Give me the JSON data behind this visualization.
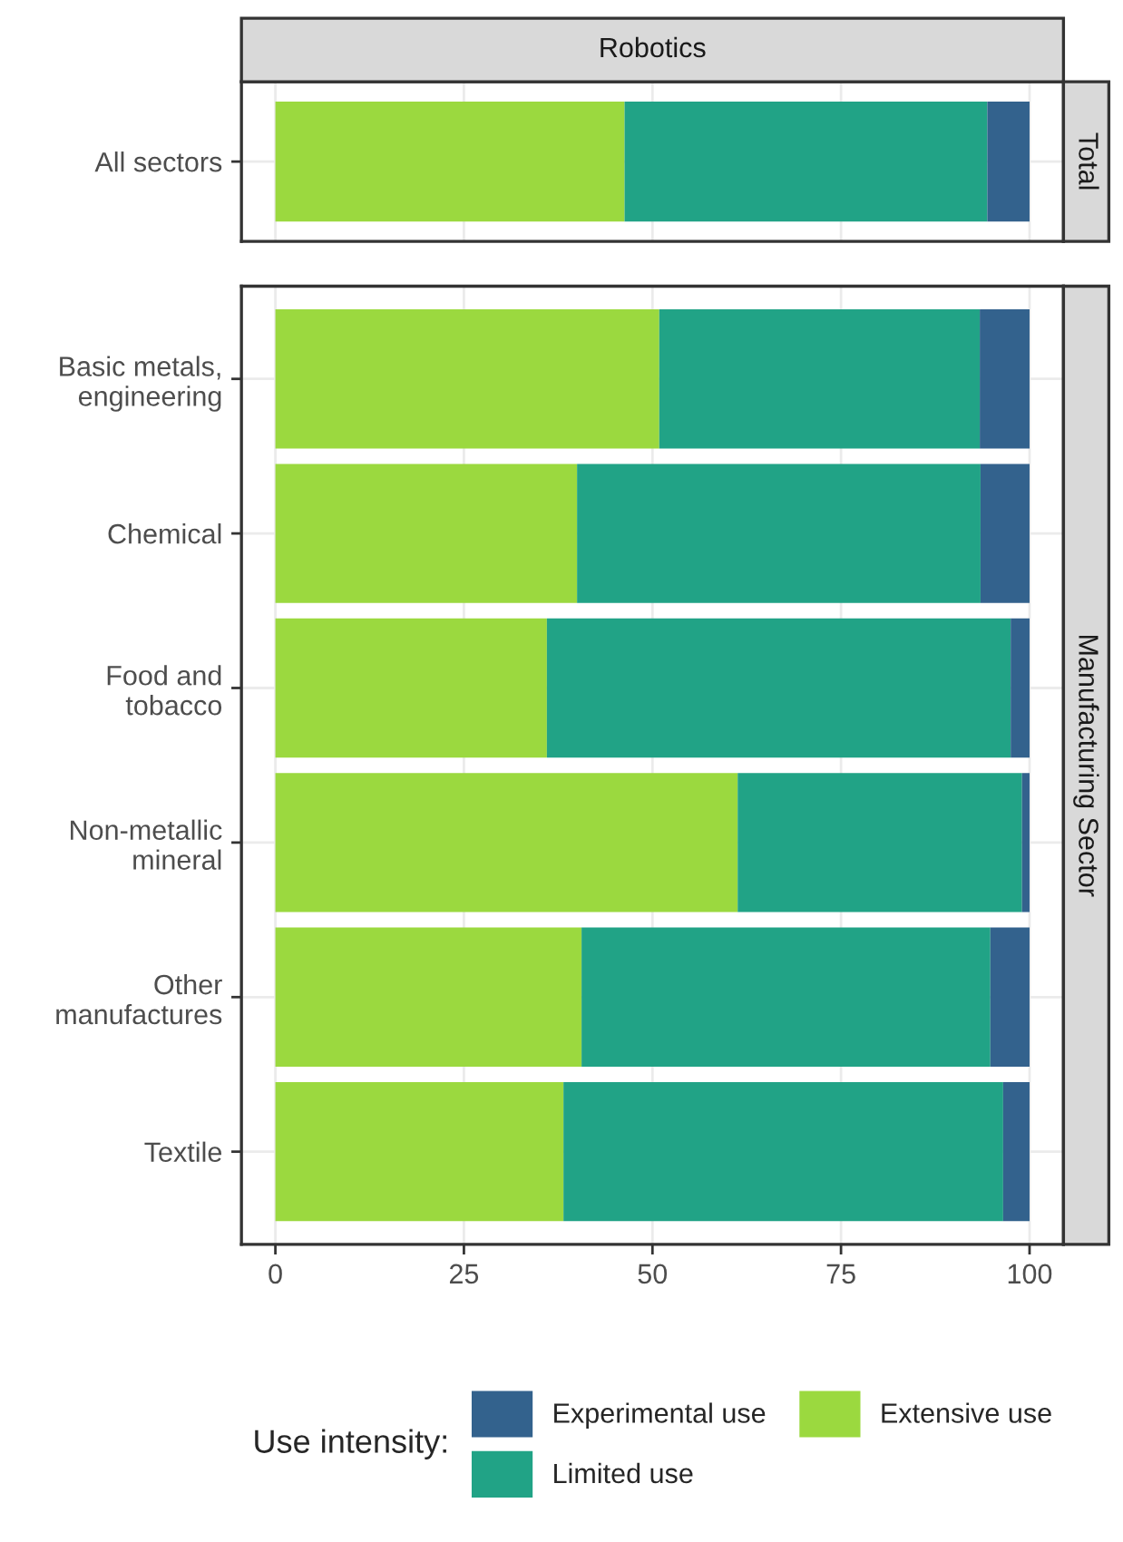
{
  "chart_data": [
    {
      "type": "bar",
      "orientation": "horizontal",
      "stacked": true,
      "title": "Robotics",
      "annotations": [
        "Total"
      ],
      "categories": [
        "All sectors"
      ],
      "series": [
        {
          "name": "Extensive use",
          "color": "#9bd93f",
          "values": [
            46.3
          ]
        },
        {
          "name": "Limited use",
          "color": "#21a386",
          "values": [
            48.1
          ]
        },
        {
          "name": "Experimental use",
          "color": "#33628d",
          "values": [
            5.6
          ]
        }
      ],
      "xlim": [
        -4.5,
        104.5
      ],
      "xticks": [
        0,
        25,
        50,
        75,
        100
      ],
      "grid": true,
      "tick_labels": "y",
      "legend": "bottom"
    },
    {
      "type": "bar",
      "orientation": "horizontal",
      "stacked": true,
      "annotations": [
        "Manufacturing Sector"
      ],
      "categories": [
        "Basic metals,\nengineering",
        "Chemical",
        "Food and\ntobacco",
        "Non-metallic\nmineral",
        "Other\nmanufactures",
        "Textile"
      ],
      "series": [
        {
          "name": "Extensive use",
          "color": "#9bd93f",
          "values": [
            50.9,
            40.0,
            36.0,
            61.3,
            40.6,
            38.2
          ]
        },
        {
          "name": "Limited use",
          "color": "#21a386",
          "values": [
            42.5,
            53.5,
            61.5,
            37.7,
            54.2,
            58.3
          ]
        },
        {
          "name": "Experimental use",
          "color": "#33628d",
          "values": [
            6.6,
            6.5,
            2.5,
            1.0,
            5.2,
            3.5
          ]
        }
      ],
      "xlim": [
        -4.5,
        104.5
      ],
      "xticks": [
        0,
        25,
        50,
        75,
        100
      ],
      "grid": true,
      "legend": "bottom",
      "legend_title": "Use intensity:"
    }
  ]
}
